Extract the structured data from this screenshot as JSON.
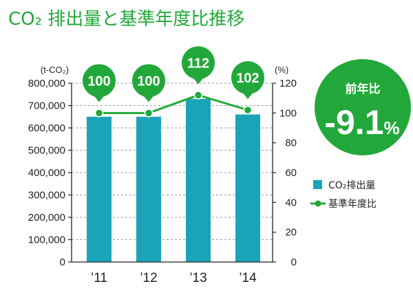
{
  "colors": {
    "accent_green": "#22a83a",
    "bar_teal": "#1ba4b8",
    "text": "#231f20",
    "grid": "#9a9a9a",
    "badge_text": "#ffffff"
  },
  "yoy_badge": {
    "label": "前年比",
    "value": "-9.1",
    "unit": "%"
  },
  "chart_data": {
    "type": "bar",
    "title": "CO₂ 排出量と基準年度比推移",
    "categories": [
      "’11",
      "’12",
      "’13",
      "’14"
    ],
    "series": [
      {
        "name": "CO₂排出量",
        "type": "bar",
        "axis": "left",
        "values": [
          650000,
          650000,
          730000,
          660000
        ]
      },
      {
        "name": "基準年度比",
        "type": "line",
        "axis": "right",
        "values": [
          100,
          100,
          112,
          102
        ],
        "data_labels": true
      }
    ],
    "y_left": {
      "label": "(t-CO₂)",
      "range": [
        0,
        800000
      ],
      "tick_labels": [
        "0",
        "100,000",
        "200,000",
        "300,000",
        "400,000",
        "500,000",
        "600,000",
        "700,000",
        "800,000"
      ]
    },
    "y_right": {
      "label": "(%)",
      "range": [
        0,
        120
      ],
      "tick_labels": [
        "0",
        "20",
        "40",
        "60",
        "80",
        "100",
        "120"
      ]
    },
    "grid": true,
    "legend": "right"
  }
}
